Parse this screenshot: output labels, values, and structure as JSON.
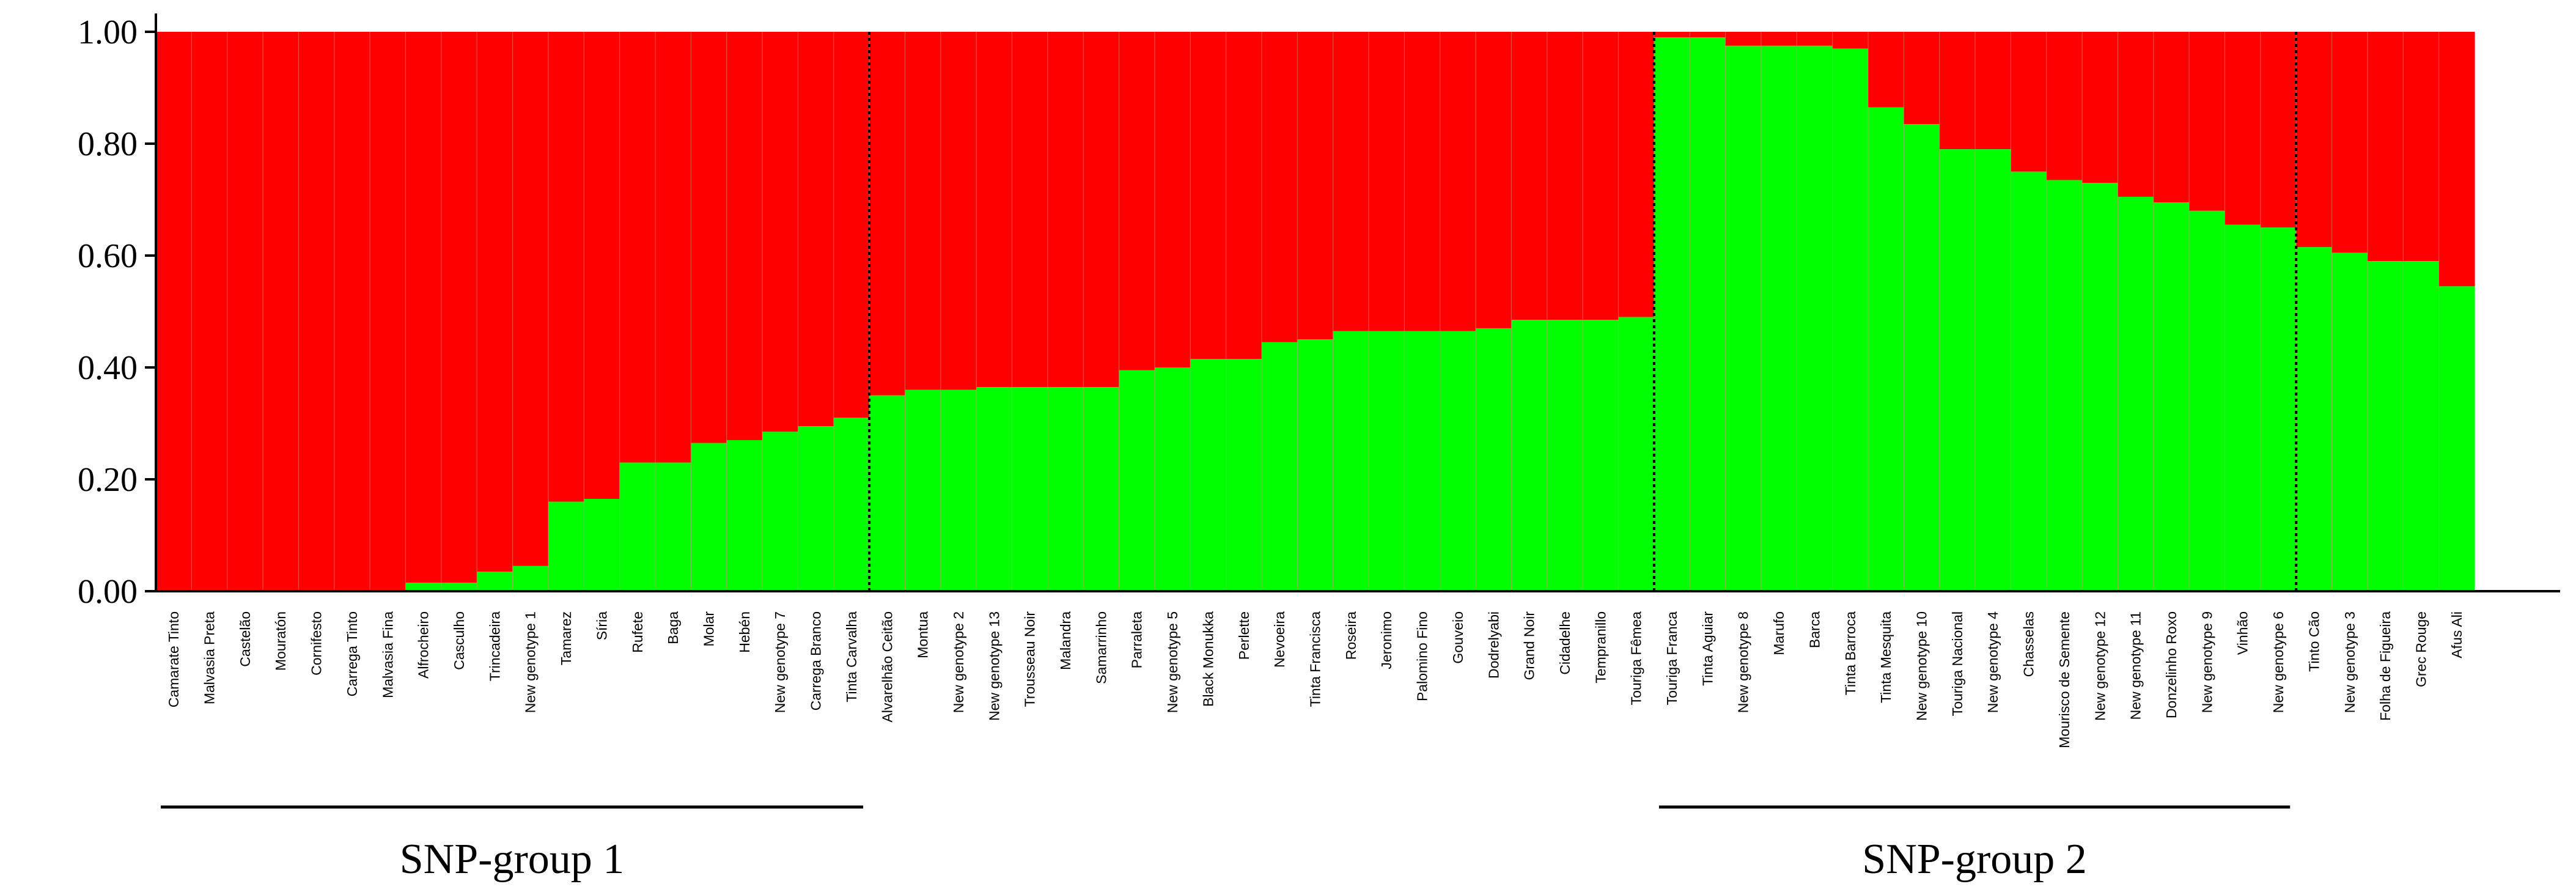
{
  "chart_data": {
    "type": "bar",
    "stacked": true,
    "title": "",
    "xlabel": "",
    "ylabel": "",
    "ylim": [
      0,
      1
    ],
    "yticks": [
      "0.00",
      "0.20",
      "0.40",
      "0.60",
      "0.80",
      "1.00"
    ],
    "grid": false,
    "legend": "none",
    "colors": {
      "green": "#00ff00",
      "red": "#ff0000",
      "bar_separator": "#f08080",
      "axis": "#000000"
    },
    "categories": [
      "Camarate Tinto",
      "Malvasia Preta",
      "Castelão",
      "Mouratón",
      "Cornifesto",
      "Carrega Tinto",
      "Malvasia Fina",
      "Alfrocheiro",
      "Casculho",
      "Trincadeira",
      "New genotype 1",
      "Tamarez",
      "Síria",
      "Rufete",
      "Baga",
      "Molar",
      "Hebén",
      "New genotype 7",
      "Carrega Branco",
      "Tinta Carvalha",
      "Alvarelhão Ceitão",
      "Montua",
      "New genotype 2",
      "New genotype 13",
      "Trousseau Noir",
      "Malandra",
      "Samarrinho",
      "Parraleta",
      "New genotype 5",
      "Black Monukka",
      "Perlette",
      "Nevoeira",
      "Tinta Francisca",
      "Roseira",
      "Jeronimo",
      "Palomino Fino",
      "Gouveio",
      "Dodrelyabi",
      "Grand Noir",
      "Cidadelhe",
      "Tempranillo",
      "Touriga Fêmea",
      "Touriga Franca",
      "Tinta Aguiar",
      "New genotype 8",
      "Marufo",
      "Barca",
      "Tinta Barroca",
      "Tinta Mesquita",
      "New genotype 10",
      "Touriga Nacional",
      "New genotype 4",
      "Chasselas",
      "Mourisco de Semente",
      "New genotype 12",
      "New genotype 11",
      "Donzelinho Roxo",
      "New genotype 9",
      "Vinhão",
      "New genotype 6",
      "Tinto Cão",
      "New genotype 3",
      "Folha de Figueira",
      "Grec Rouge",
      "Afus Ali"
    ],
    "series": [
      {
        "color": "#00ff00",
        "values": [
          0,
          0,
          0,
          0,
          0,
          0,
          0,
          0.015,
          0.015,
          0.035,
          0.045,
          0.16,
          0.165,
          0.23,
          0.23,
          0.265,
          0.27,
          0.285,
          0.295,
          0.31,
          0.35,
          0.36,
          0.36,
          0.365,
          0.365,
          0.365,
          0.365,
          0.395,
          0.4,
          0.415,
          0.415,
          0.445,
          0.45,
          0.465,
          0.465,
          0.465,
          0.465,
          0.47,
          0.485,
          0.485,
          0.485,
          0.49,
          0.99,
          0.99,
          0.975,
          0.975,
          0.975,
          0.97,
          0.865,
          0.835,
          0.79,
          0.79,
          0.75,
          0.735,
          0.73,
          0.705,
          0.695,
          0.68,
          0.655,
          0.65,
          0.615,
          0.605,
          0.59,
          0.59,
          0.545
        ]
      },
      {
        "color": "#ff0000",
        "values": [
          1,
          1,
          1,
          1,
          1,
          1,
          1,
          0.985,
          0.985,
          0.965,
          0.955,
          0.84,
          0.835,
          0.77,
          0.77,
          0.735,
          0.73,
          0.715,
          0.705,
          0.69,
          0.65,
          0.64,
          0.64,
          0.635,
          0.635,
          0.635,
          0.635,
          0.605,
          0.6,
          0.585,
          0.585,
          0.555,
          0.55,
          0.535,
          0.535,
          0.535,
          0.535,
          0.53,
          0.515,
          0.515,
          0.515,
          0.51,
          0.01,
          0.01,
          0.025,
          0.025,
          0.025,
          0.03,
          0.135,
          0.165,
          0.21,
          0.21,
          0.25,
          0.265,
          0.27,
          0.295,
          0.305,
          0.32,
          0.345,
          0.35,
          0.385,
          0.395,
          0.41,
          0.41,
          0.455
        ]
      }
    ],
    "dividers_after_index": [
      19,
      41,
      59
    ],
    "groups": [
      {
        "label": "SNP-group 1",
        "from_index": 0,
        "to_index": 19
      },
      {
        "label": "SNP-group 2",
        "from_index": 42,
        "to_index": 59
      }
    ]
  }
}
